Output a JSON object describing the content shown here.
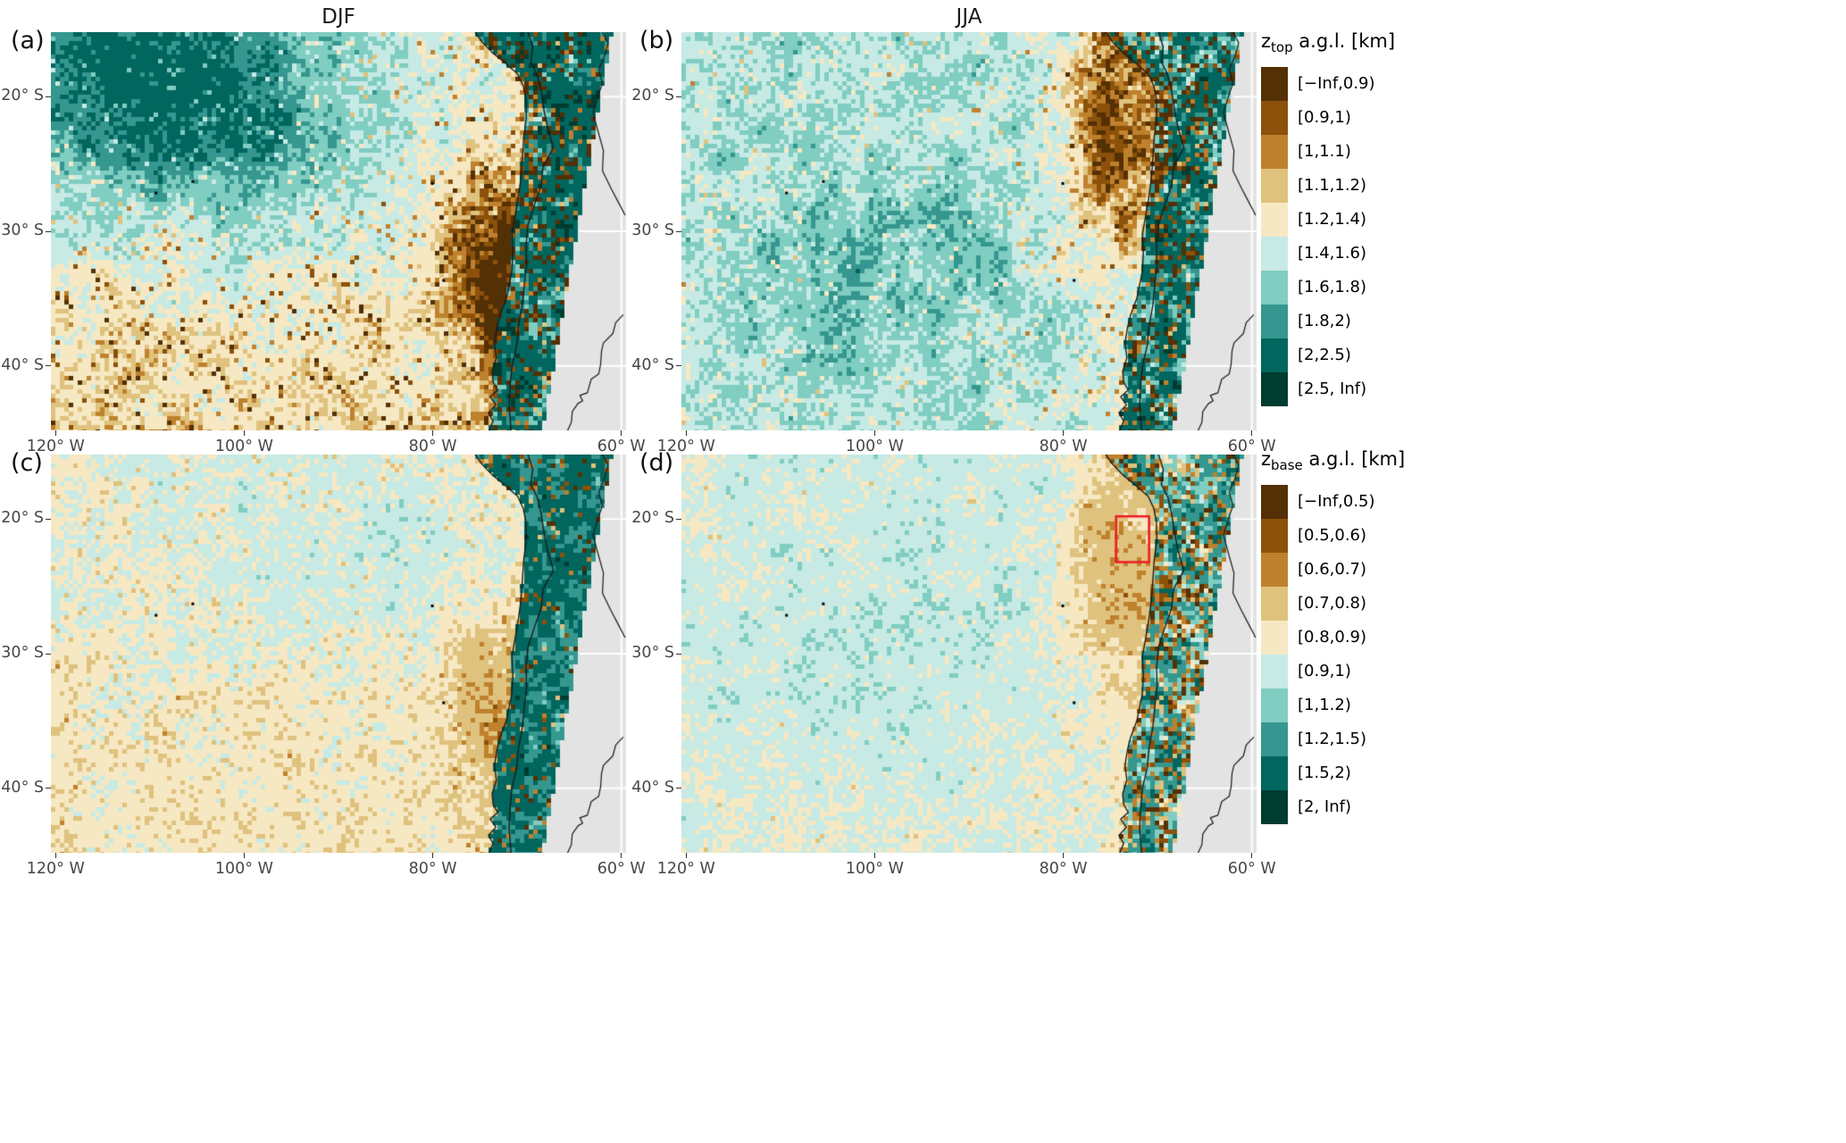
{
  "figure": {
    "column_titles": [
      "DJF",
      "JJA"
    ]
  },
  "chart_data": {
    "type": "heatmap",
    "description": "Four-panel seasonal maps (columns: DJF, JJA) of binned cloud top height z_top (row 1) and cloud base height z_base (row 2) above ground level over the southeast Pacific and western South America. BrBG discrete palette (brown = low, teal = high); grey = no data east of the satellite swath; black lines = coastlines and borders; red box in panel (d) marks a coastal region near 20-23 S, 71-74 W.",
    "x_axis": {
      "range_lon_w": [
        120.5,
        59.5
      ],
      "ticks": [
        {
          "lon_w": 120,
          "label": "120° W"
        },
        {
          "lon_w": 100,
          "label": "100° W"
        },
        {
          "lon_w": 80,
          "label": "80° W"
        },
        {
          "lon_w": 60,
          "label": "60° W"
        }
      ]
    },
    "y_axis": {
      "range_lat_s": [
        15.2,
        44.8
      ],
      "ticks": [
        {
          "lat_s": 20,
          "label": "20° S"
        },
        {
          "lat_s": 30,
          "label": "30° S"
        },
        {
          "lat_s": 40,
          "label": "40° S"
        }
      ]
    },
    "palette": [
      "#543005",
      "#8c510a",
      "#bf812d",
      "#dfc27d",
      "#f6e8c3",
      "#c7eae5",
      "#80cdc1",
      "#35978f",
      "#01665e",
      "#003c30"
    ],
    "no_data_color": "#e3e3e3",
    "legends": [
      {
        "title_prefix": "z",
        "title_sub": "top",
        "title_suffix": " a.g.l. [km]",
        "bins": [
          {
            "label": "[−Inf,0.9)",
            "color": "#543005"
          },
          {
            "label": "[0.9,1)",
            "color": "#8c510a"
          },
          {
            "label": "[1,1.1)",
            "color": "#bf812d"
          },
          {
            "label": "[1.1,1.2)",
            "color": "#dfc27d"
          },
          {
            "label": "[1.2,1.4)",
            "color": "#f6e8c3"
          },
          {
            "label": "[1.4,1.6)",
            "color": "#c7eae5"
          },
          {
            "label": "[1.6,1.8)",
            "color": "#80cdc1"
          },
          {
            "label": "[1.8,2)",
            "color": "#35978f"
          },
          {
            "label": "[2,2.5)",
            "color": "#01665e"
          },
          {
            "label": "[2.5, Inf)",
            "color": "#003c30"
          }
        ]
      },
      {
        "title_prefix": "z",
        "title_sub": "base",
        "title_suffix": " a.g.l. [km]",
        "bins": [
          {
            "label": "[−Inf,0.5)",
            "color": "#543005"
          },
          {
            "label": "[0.5,0.6)",
            "color": "#8c510a"
          },
          {
            "label": "[0.6,0.7)",
            "color": "#bf812d"
          },
          {
            "label": "[0.7,0.8)",
            "color": "#dfc27d"
          },
          {
            "label": "[0.8,0.9)",
            "color": "#f6e8c3"
          },
          {
            "label": "[0.9,1)",
            "color": "#c7eae5"
          },
          {
            "label": "[1,1.2)",
            "color": "#80cdc1"
          },
          {
            "label": "[1.2,1.5)",
            "color": "#35978f"
          },
          {
            "label": "[1.5,2)",
            "color": "#01665e"
          },
          {
            "label": "[2, Inf)",
            "color": "#003c30"
          }
        ]
      }
    ],
    "panels": [
      {
        "id": "a",
        "label": "(a)",
        "season": "DJF",
        "variable": "z_top",
        "legend": 0,
        "thresholds_km": [
          0.9,
          1,
          1.1,
          1.2,
          1.4,
          1.6,
          1.8,
          2,
          2.5
        ],
        "pattern": "deep tops 1.8-2.5+ km over the northwest open ocean (95-120 W, 16-28 S); 1.2-1.6 km cream/pale-teal south of 35 S; shallow 0.9-1.1 km pocket off Chile near 73 W, 30-35 S; low tan band along the northern coast; 2-2.5+ km over the Andes with brown crest speckles"
      },
      {
        "id": "b",
        "label": "(b)",
        "season": "JJA",
        "variable": "z_top",
        "legend": 0,
        "thresholds_km": [
          0.9,
          1,
          1.1,
          1.2,
          1.4,
          1.6,
          1.8,
          2,
          2.5
        ],
        "pattern": "1.4-1.8 km teal over most of the ocean with darker 1.8-2 km patches near 90-100 W, 30-40 S; broad shallow 0.9-1.2 km brown band offshore 70-80 W north of 30 S extending over the Atacama; high tops over the Andes"
      },
      {
        "id": "c",
        "label": "(c)",
        "season": "DJF",
        "variable": "z_base",
        "legend": 1,
        "thresholds_km": [
          0.5,
          0.6,
          0.7,
          0.8,
          0.9,
          1,
          1.2,
          1.5,
          2
        ],
        "pattern": "mostly 0.8-0.9 km cream with 0.9-1 km pale-teal patches in the north and scattered 0.7-0.8 km tan speckles; lower 0.6-0.8 km bases near the coast at 30-35 S; 1.2-2+ km bases over the Andes"
      },
      {
        "id": "d",
        "label": "(d)",
        "season": "JJA",
        "variable": "z_base",
        "legend": 1,
        "thresholds_km": [
          0.5,
          0.6,
          0.7,
          0.8,
          0.9,
          1,
          1.2,
          1.5,
          2
        ],
        "pattern": "mostly 0.9-1 km pale teal with cream patches; 0.7-0.8 km tan band offshore north of 30 S; strongly mixed low/high bases over the Andes",
        "annotation": {
          "type": "rect",
          "color": "#ed1c24",
          "lon_w": [
            74.4,
            70.9
          ],
          "lat_s": [
            19.8,
            23.2
          ]
        }
      }
    ]
  }
}
